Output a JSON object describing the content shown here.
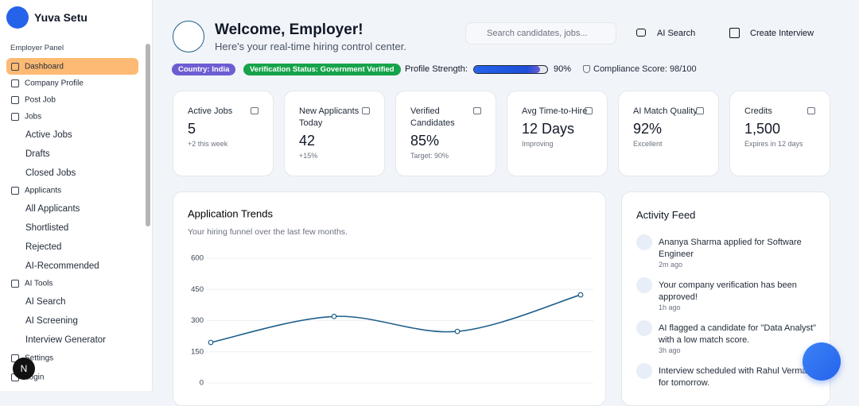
{
  "sidebar": {
    "brand": "Yuva Setu",
    "section": "Employer Panel",
    "items": [
      {
        "label": "Dashboard",
        "active": true
      },
      {
        "label": "Company Profile"
      },
      {
        "label": "Post Job"
      },
      {
        "label": "Jobs",
        "children": [
          "Active Jobs",
          "Drafts",
          "Closed Jobs"
        ]
      },
      {
        "label": "Applicants",
        "children": [
          "All Applicants",
          "Shortlisted",
          "Rejected",
          "AI-Recommended"
        ]
      },
      {
        "label": "AI Tools",
        "children": [
          "AI Search",
          "AI Screening",
          "Interview Generator"
        ]
      }
    ],
    "footer_items": [
      "Settings",
      "Login"
    ],
    "dev_badge": "N"
  },
  "header": {
    "title": "Welcome, Employer!",
    "subtitle": "Here's your real-time hiring control center.",
    "search_placeholder": "Search candidates, jobs...",
    "actions": [
      "AI Search",
      "Create Interview"
    ]
  },
  "badges": [
    "Country: India",
    "Verification Status: Government Verified"
  ],
  "profile_strength": {
    "label": "Profile Strength:",
    "value": 90,
    "value_label": "90%"
  },
  "compliance": "Compliance Score: 98/100",
  "stats": [
    {
      "label": "Active Jobs",
      "value": "5",
      "note": "+2 this week"
    },
    {
      "label": "New Applicants Today",
      "value": "42",
      "note": "+15%"
    },
    {
      "label": "Verified Candidates",
      "value": "85%",
      "note": "Target: 90%"
    },
    {
      "label": "Avg Time-to-Hire",
      "value": "12 Days",
      "note": "Improving"
    },
    {
      "label": "AI Match Quality",
      "value": "92%",
      "note": "Excellent"
    },
    {
      "label": "Credits",
      "value": "1,500",
      "note": "Expires in 12 days"
    }
  ],
  "chart_data": {
    "type": "line",
    "title": "Application Trends",
    "subtitle": "Your hiring funnel over the last few months.",
    "categories": [
      null,
      null,
      null,
      null
    ],
    "values": [
      195,
      320,
      248,
      424
    ],
    "color": "#1f5f8b",
    "ylim": [
      0,
      600
    ],
    "yticks": [
      0,
      150,
      300,
      450,
      600
    ],
    "grid": true,
    "smooth": true
  },
  "activity": {
    "title": "Activity Feed",
    "items": [
      {
        "text": "Ananya Sharma applied for Software Engineer",
        "time": "2m ago"
      },
      {
        "text": "Your company verification has been approved!",
        "time": "1h ago"
      },
      {
        "text": "AI flagged a candidate for \"Data Analyst\" with a low match score.",
        "time": "3h ago"
      },
      {
        "text": "Interview scheduled with Rahul Verma for tomorrow.",
        "time": ""
      }
    ]
  }
}
